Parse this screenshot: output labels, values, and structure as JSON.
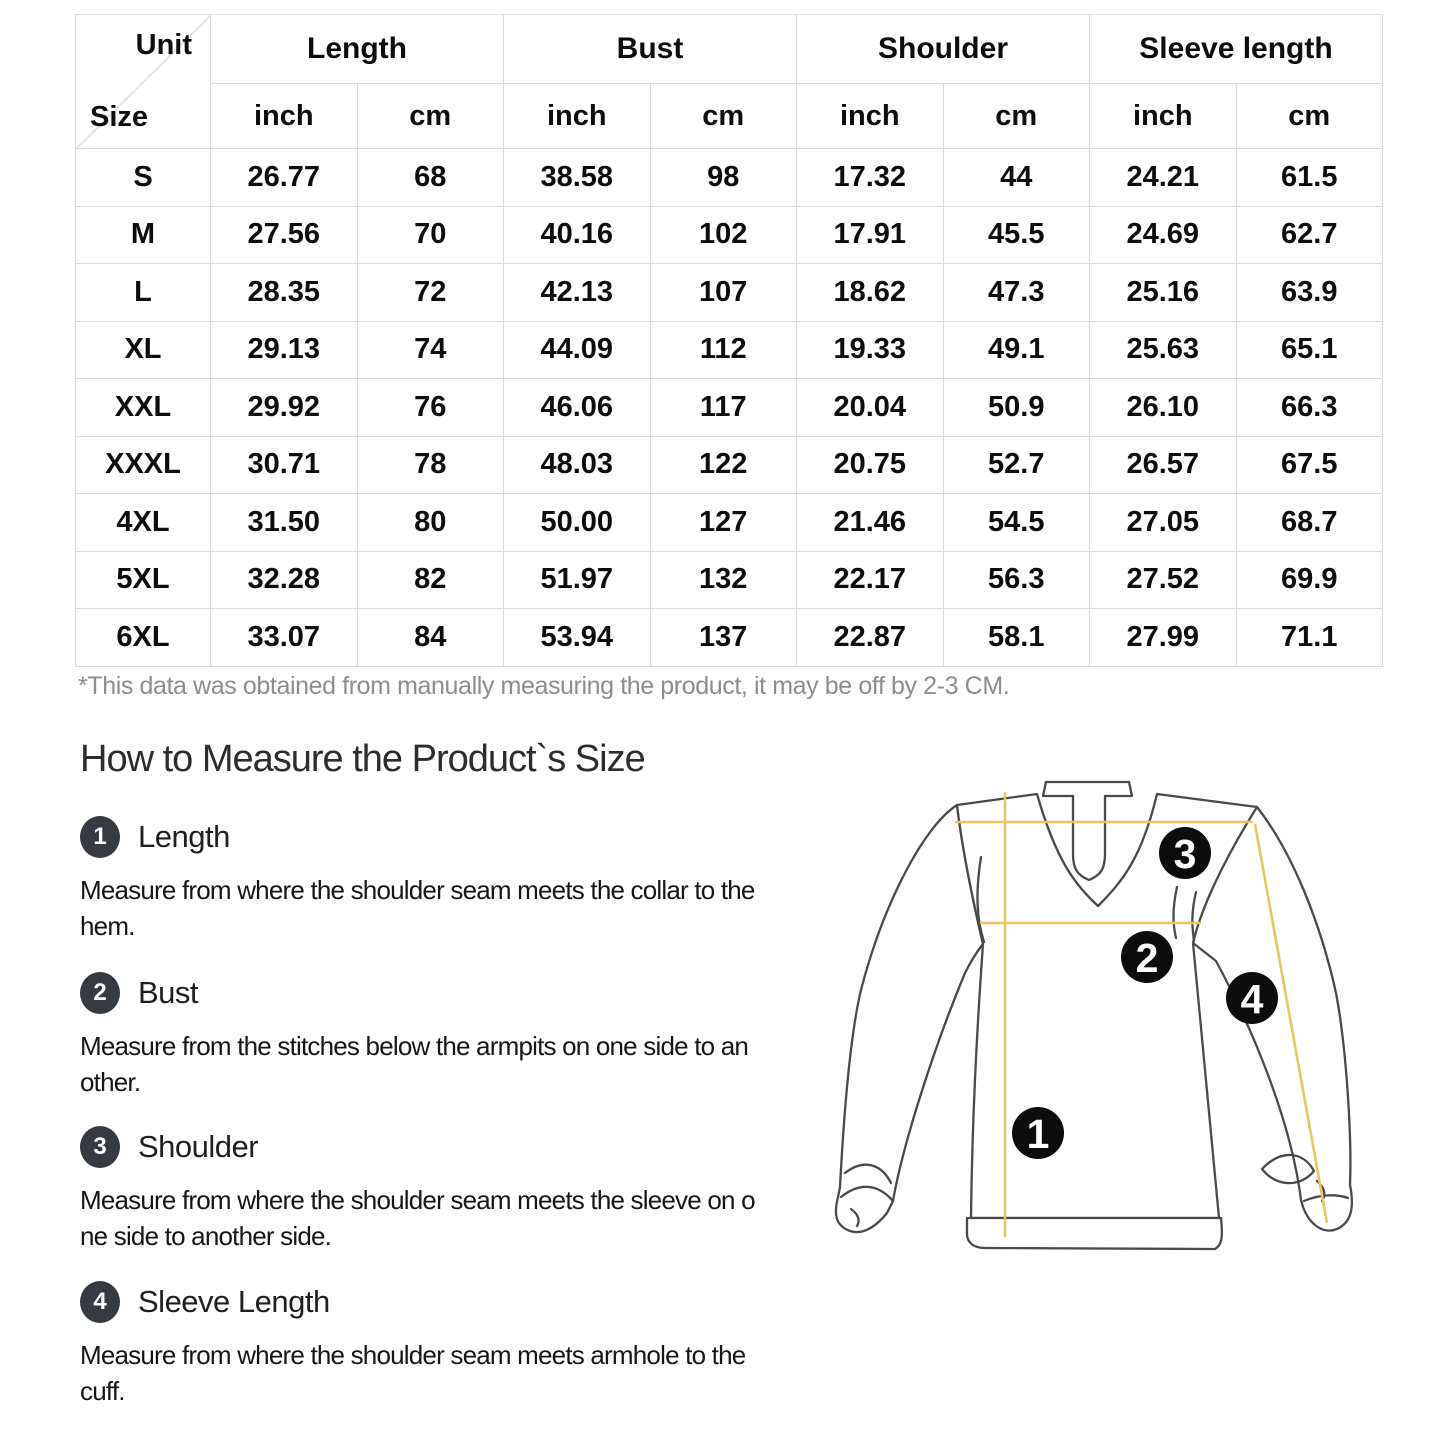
{
  "size_table": {
    "corner": {
      "top_label": "Unit",
      "bottom_label": "Size"
    },
    "column_groups": [
      {
        "label": "Length"
      },
      {
        "label": "Bust"
      },
      {
        "label": "Shoulder"
      },
      {
        "label": "Sleeve length"
      }
    ],
    "unit_headers": [
      "inch",
      "cm",
      "inch",
      "cm",
      "inch",
      "cm",
      "inch",
      "cm"
    ],
    "rows": [
      {
        "size": "S",
        "values": [
          "26.77",
          "68",
          "38.58",
          "98",
          "17.32",
          "44",
          "24.21",
          "61.5"
        ]
      },
      {
        "size": "M",
        "values": [
          "27.56",
          "70",
          "40.16",
          "102",
          "17.91",
          "45.5",
          "24.69",
          "62.7"
        ]
      },
      {
        "size": "L",
        "values": [
          "28.35",
          "72",
          "42.13",
          "107",
          "18.62",
          "47.3",
          "25.16",
          "63.9"
        ]
      },
      {
        "size": "XL",
        "values": [
          "29.13",
          "74",
          "44.09",
          "112",
          "19.33",
          "49.1",
          "25.63",
          "65.1"
        ]
      },
      {
        "size": "XXL",
        "values": [
          "29.92",
          "76",
          "46.06",
          "117",
          "20.04",
          "50.9",
          "26.10",
          "66.3"
        ]
      },
      {
        "size": "XXXL",
        "values": [
          "30.71",
          "78",
          "48.03",
          "122",
          "20.75",
          "52.7",
          "26.57",
          "67.5"
        ]
      },
      {
        "size": "4XL",
        "values": [
          "31.50",
          "80",
          "50.00",
          "127",
          "21.46",
          "54.5",
          "27.05",
          "68.7"
        ]
      },
      {
        "size": "5XL",
        "values": [
          "32.28",
          "82",
          "51.97",
          "132",
          "22.17",
          "56.3",
          "27.52",
          "69.9"
        ]
      },
      {
        "size": "6XL",
        "values": [
          "33.07",
          "84",
          "53.94",
          "137",
          "22.87",
          "58.1",
          "27.99",
          "71.1"
        ]
      }
    ],
    "footnote": "*This data was obtained from manually measuring the product, it may be off by 2-3 CM."
  },
  "measure_guide": {
    "heading": "How to Measure the Product`s Size",
    "items": [
      {
        "number": "1",
        "label": "Length",
        "description": "Measure from where the shoulder seam meets the collar to the\nhem."
      },
      {
        "number": "2",
        "label": "Bust",
        "description": "Measure from the stitches below the armpits on one side to an\nother."
      },
      {
        "number": "3",
        "label": "Shoulder",
        "description": "Measure from where the shoulder seam meets the sleeve on o\nne side to another side."
      },
      {
        "number": "4",
        "label": "Sleeve Length",
        "description": "Measure from where the shoulder seam meets armhole to the\ncuff."
      }
    ]
  },
  "illustration": {
    "markers": [
      "1",
      "2",
      "3",
      "4"
    ],
    "colors": {
      "measure_line": "#e9c660",
      "outline": "#4a4a4a",
      "marker_bg": "#0c0c0c",
      "marker_text": "#ffffff"
    }
  }
}
